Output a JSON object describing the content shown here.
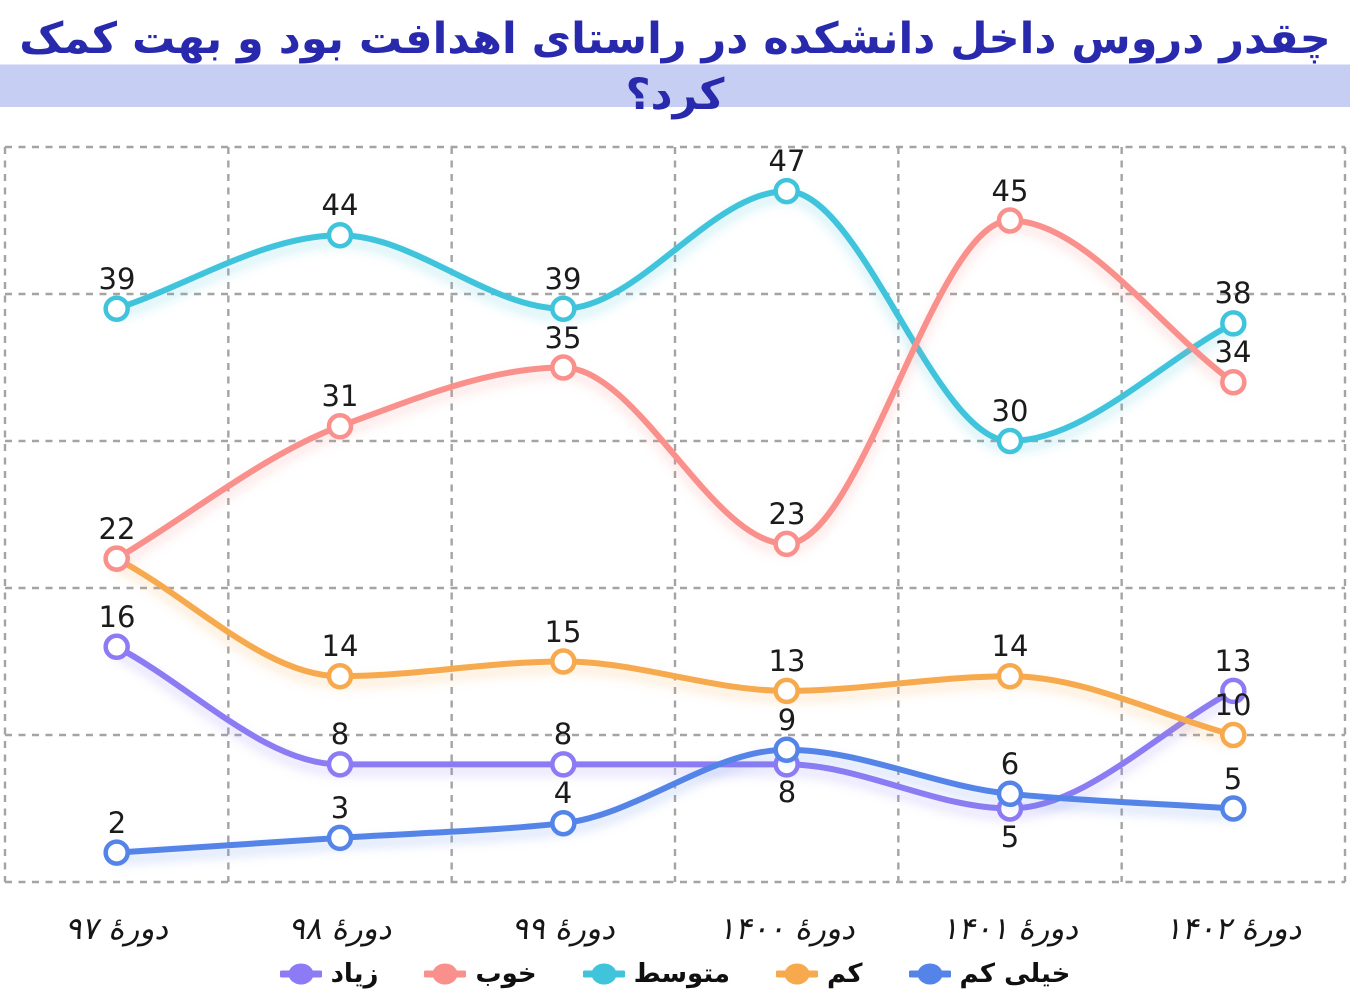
{
  "title": {
    "text": "چقدر دروس داخل دانشکده در راستای اهدافت بود و بهت کمک کرد؟",
    "color": "#2929AE",
    "highlight_color": "#C7CEF3"
  },
  "chart_data": {
    "type": "line",
    "categories": [
      "دورهٔ ۹۷",
      "دورهٔ ۹۸",
      "دورهٔ ۹۹",
      "دورهٔ ۱۴۰۰",
      "دورهٔ ۱۴۰۱",
      "دورهٔ ۱۴۰۲"
    ],
    "series": [
      {
        "id": "high",
        "name": "زیاد",
        "color": "#8C7BF4",
        "values": [
          16,
          8,
          8,
          8,
          5,
          13
        ],
        "label_below": [
          3,
          4
        ]
      },
      {
        "id": "good",
        "name": "خوب",
        "color": "#F9908C",
        "values": [
          22,
          31,
          35,
          23,
          45,
          34
        ],
        "label_below": []
      },
      {
        "id": "medium",
        "name": "متوسط",
        "color": "#3FC4DC",
        "values": [
          39,
          44,
          39,
          47,
          30,
          38
        ],
        "label_below": []
      },
      {
        "id": "low",
        "name": "کم",
        "color": "#F7A94E",
        "values": [
          22,
          14,
          15,
          13,
          14,
          10
        ],
        "label_below": []
      },
      {
        "id": "very-low",
        "name": "خیلی کم",
        "color": "#5584E8",
        "values": [
          2,
          3,
          4,
          9,
          6,
          5
        ],
        "label_below": []
      }
    ],
    "draw_order": [
      0,
      4,
      3,
      2,
      1
    ],
    "title": "چقدر دروس داخل دانشکده در راستای اهدافت بود و بهت کمک کرد؟",
    "xlabel": "",
    "ylabel": "",
    "ylim": [
      0,
      50
    ],
    "grid": {
      "horizontal_step": 10,
      "style": "dashed",
      "color": "#A4A4A4"
    },
    "legend_position": "bottom",
    "value_labels": true
  }
}
